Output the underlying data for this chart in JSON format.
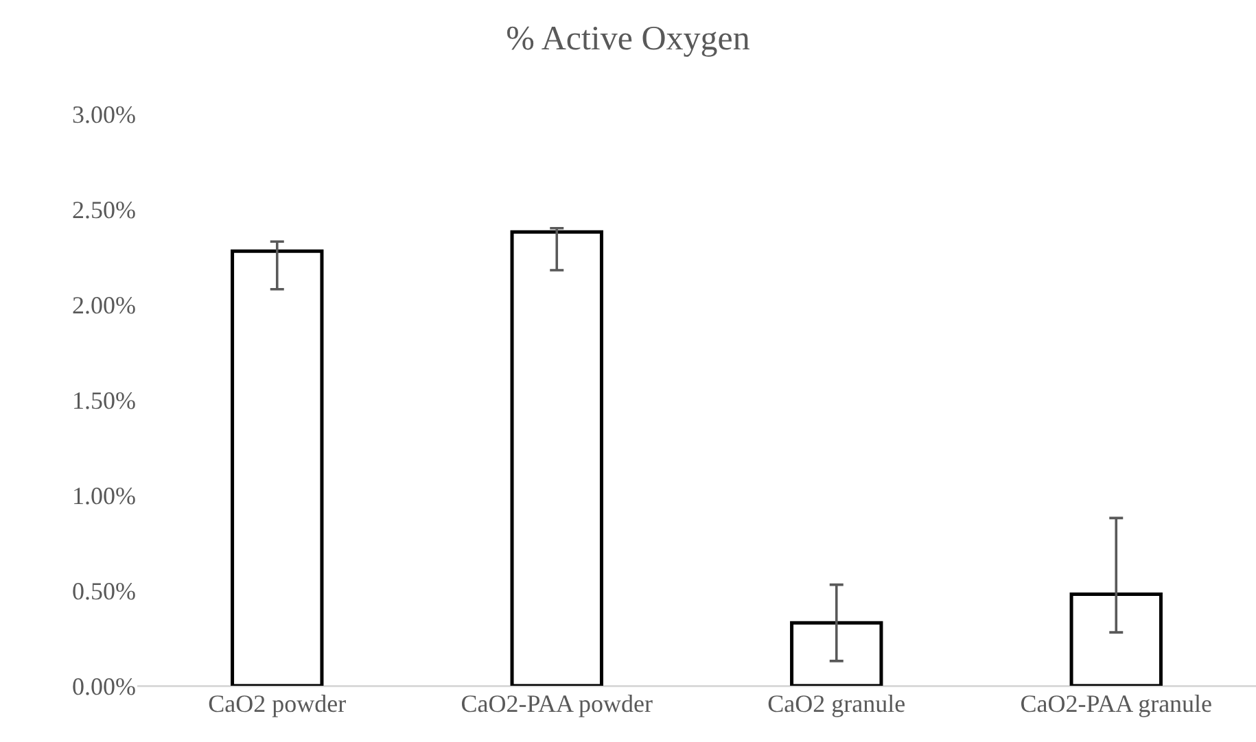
{
  "chart_data": {
    "type": "bar",
    "title": "% Active Oxygen",
    "categories": [
      "CaO2 powder",
      "CaO2-PAA powder",
      "CaO2 granule",
      "CaO2-PAA granule"
    ],
    "values": [
      2.28,
      2.38,
      0.33,
      0.48
    ],
    "errors": [
      [
        2.08,
        2.33
      ],
      [
        2.18,
        2.4
      ],
      [
        0.13,
        0.53
      ],
      [
        0.28,
        0.88
      ]
    ],
    "color": "#ffffff",
    "ylim": [
      0,
      3
    ],
    "yticks": [
      {
        "value": 0,
        "label": "0.00%"
      },
      {
        "value": 0.5,
        "label": "0.50%"
      },
      {
        "value": 1,
        "label": "1.00%"
      },
      {
        "value": 1.5,
        "label": "1.50%"
      },
      {
        "value": 2,
        "label": "2.00%"
      },
      {
        "value": 2.5,
        "label": "2.50%"
      },
      {
        "value": 3,
        "label": "3.00%"
      }
    ],
    "grid": false,
    "legend": false
  }
}
